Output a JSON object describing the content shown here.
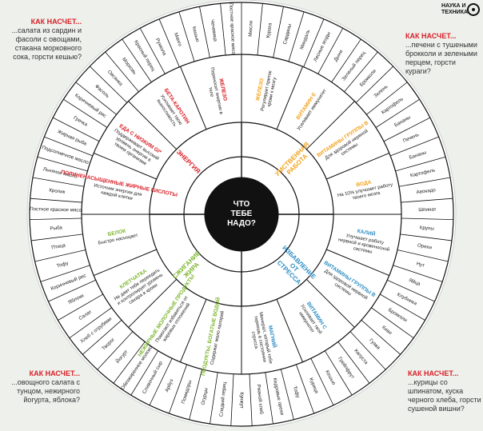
{
  "center": {
    "line1": "ЧТО",
    "line2": "ТЕБЕ",
    "line3": "НАДО?"
  },
  "sectors": [
    {
      "name": "УМСТВЕННАЯ РАБОТА",
      "color": "#f3a21b"
    },
    {
      "name": "ИЗБАВЛЕНИЕ ОТ СТРЕССА",
      "color": "#2f8fc4"
    },
    {
      "name": "СЖИГАНИЕ ЖИРА",
      "color": "#7cb62e"
    },
    {
      "name": "ЭНЕРГИЯ",
      "color": "#d81f26"
    }
  ],
  "nutrients": [
    {
      "title": "ЖЕЛЕЗО",
      "text": "Регулирует приток крови к мозгу",
      "color": "#f3a21b"
    },
    {
      "title": "ВИТАМИН Е",
      "text": "Усиливает иммунитет",
      "color": "#f3a21b"
    },
    {
      "title": "ВИТАМИНЫ ГРУППЫ B",
      "text": "Для здоровой нервной системы",
      "color": "#f3a21b"
    },
    {
      "title": "ВОДА",
      "text": "На 10% улучшает работу твоего мозга",
      "color": "#f3a21b"
    },
    {
      "title": "КАЛИЙ",
      "text": "Улучшает работу нервной и кровеносной системы",
      "color": "#2f8fc4"
    },
    {
      "title": "ВИТАМИНЫ ГРУППЫ B",
      "text": "Для здоровой нервной системы",
      "color": "#2f8fc4"
    },
    {
      "title": "ВИТАМИН С",
      "text": "Усиливает твой иммунитет",
      "color": "#2f8fc4"
    },
    {
      "title": "МАГНИЙ",
      "text": "Минерал, который тебе теряешь в состоянии стресса",
      "color": "#2f8fc4"
    },
    {
      "title": "ПРОДУКТЫ, БОГАТЫЕ ВОДОЙ",
      "text": "Содержат мало калорий",
      "color": "#7cb62e"
    },
    {
      "title": "НЕЖИРНЫЕ МОЛОЧНЫЕ ПРОДУКТЫ",
      "text": "Помогают избавиться от жировых отложений",
      "color": "#7cb62e"
    },
    {
      "title": "КЛЕТЧАТКА",
      "text": "Не дает тебе переедать и контролирует уровень сахара в крови",
      "color": "#7cb62e"
    },
    {
      "title": "БЕЛОК",
      "text": "Быстро насыщает",
      "color": "#7cb62e"
    },
    {
      "title": "ПОЛИНЕНАСЫЩЕННЫЕ ЖИРНЫЕ КИСЛОТЫ",
      "text": "Источник энергии для каждой клетки",
      "color": "#d81f26"
    },
    {
      "title": "ЕДА С НИЗКИМ GI*",
      "text": "Поддерживает высокий уровень энергии в твоем организме",
      "color": "#d81f26"
    },
    {
      "title": "БЕТА-КАРОТИН",
      "text": "Усиливает твою выносливость",
      "color": "#d81f26"
    },
    {
      "title": "ЖЕЛЕЗО",
      "text": "Переносит энергию в теле",
      "color": "#d81f26"
    }
  ],
  "foods": [
    "Мюсли",
    "Курага",
    "Сардины",
    "Миндаль",
    "Лесные ягоды",
    "Дыни",
    "Зеленый перец",
    "Брокколи",
    "Зелень",
    "Картофель",
    "Бананы",
    "Печень",
    "Бананы",
    "Картофель",
    "Авокадо",
    "Шпинат",
    "Крупы",
    "Орехи",
    "Нут",
    "Яйца",
    "Клубника",
    "Брокколи",
    "Киви",
    "Гуава",
    "Капуста",
    "Грейпфрут",
    "Кешью",
    "Курица",
    "Тофу",
    "Кедровые орехи",
    "Ржаной хлеб",
    "Кунжут",
    "Сладкий перец",
    "Огурцы",
    "Помидоры",
    "Арбуз",
    "Сливочный сыр",
    "Обезжиренное молоко",
    "Йогурт",
    "Творог",
    "Хлеб с отрубями",
    "Салат",
    "Яблоки",
    "Коричневый рис",
    "Тофу",
    "Птица",
    "Рыба",
    "Постное красное мясо",
    "Кролик",
    "Льняное масло",
    "Подсолнечное масло",
    "Жирная рыба",
    "Гречка",
    "Коричневый рис",
    "Фасоль",
    "Овсянка",
    "Морковь",
    "Красный перец",
    "Руккола",
    "Манго",
    "Кешью",
    "Чечевица",
    "Постное красное мясо"
  ],
  "corners": [
    {
      "q": "КАК НАСЧЕТ...",
      "text": "...салата из сардин и фасоли с овощами, стакана морковного сока, горсти кешью?"
    },
    {
      "q": "КАК НАСЧЕТ...",
      "text": "...печени с тушеными брокколи и зелеными перцем, горсти кураги?"
    },
    {
      "q": "КАК НАСЧЕТ...",
      "text": "...овощного салата с тунцом, нежирного йогурта, яблока?"
    },
    {
      "q": "КАК НАСЧЕТ...",
      "text": "...курицы со шпинатом, куска черного хлеба, горсти сушеной вишни?"
    }
  ],
  "logo": {
    "line1": "НАУКА И",
    "line2": "ТЕХНИКА"
  }
}
